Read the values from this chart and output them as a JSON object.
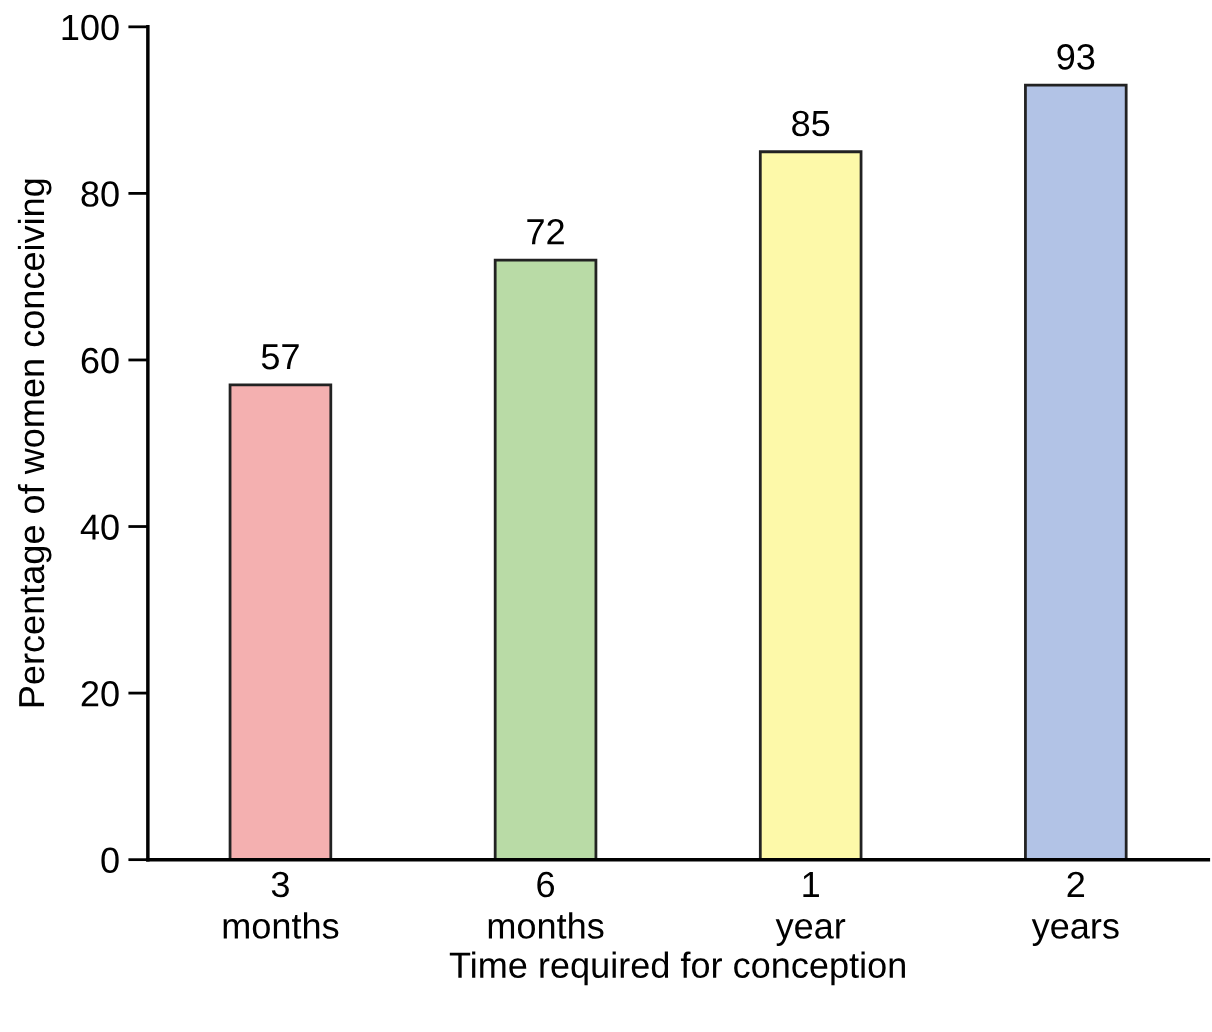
{
  "chart_data": {
    "type": "bar",
    "xlabel": "Time required for conception",
    "ylabel": "Percentage of women conceiving",
    "categories": [
      "3\nmonths",
      "6\nmonths",
      "1\nyear",
      "2\nyears"
    ],
    "values": [
      57,
      72,
      85,
      93
    ],
    "colors": [
      "#f4b0b0",
      "#b9dba6",
      "#fdf9a9",
      "#b2c3e6"
    ],
    "ylim": [
      0,
      100
    ],
    "yticks": [
      0,
      20,
      40,
      60,
      80,
      100
    ],
    "grid": false,
    "legend": false,
    "data_labels": true
  }
}
